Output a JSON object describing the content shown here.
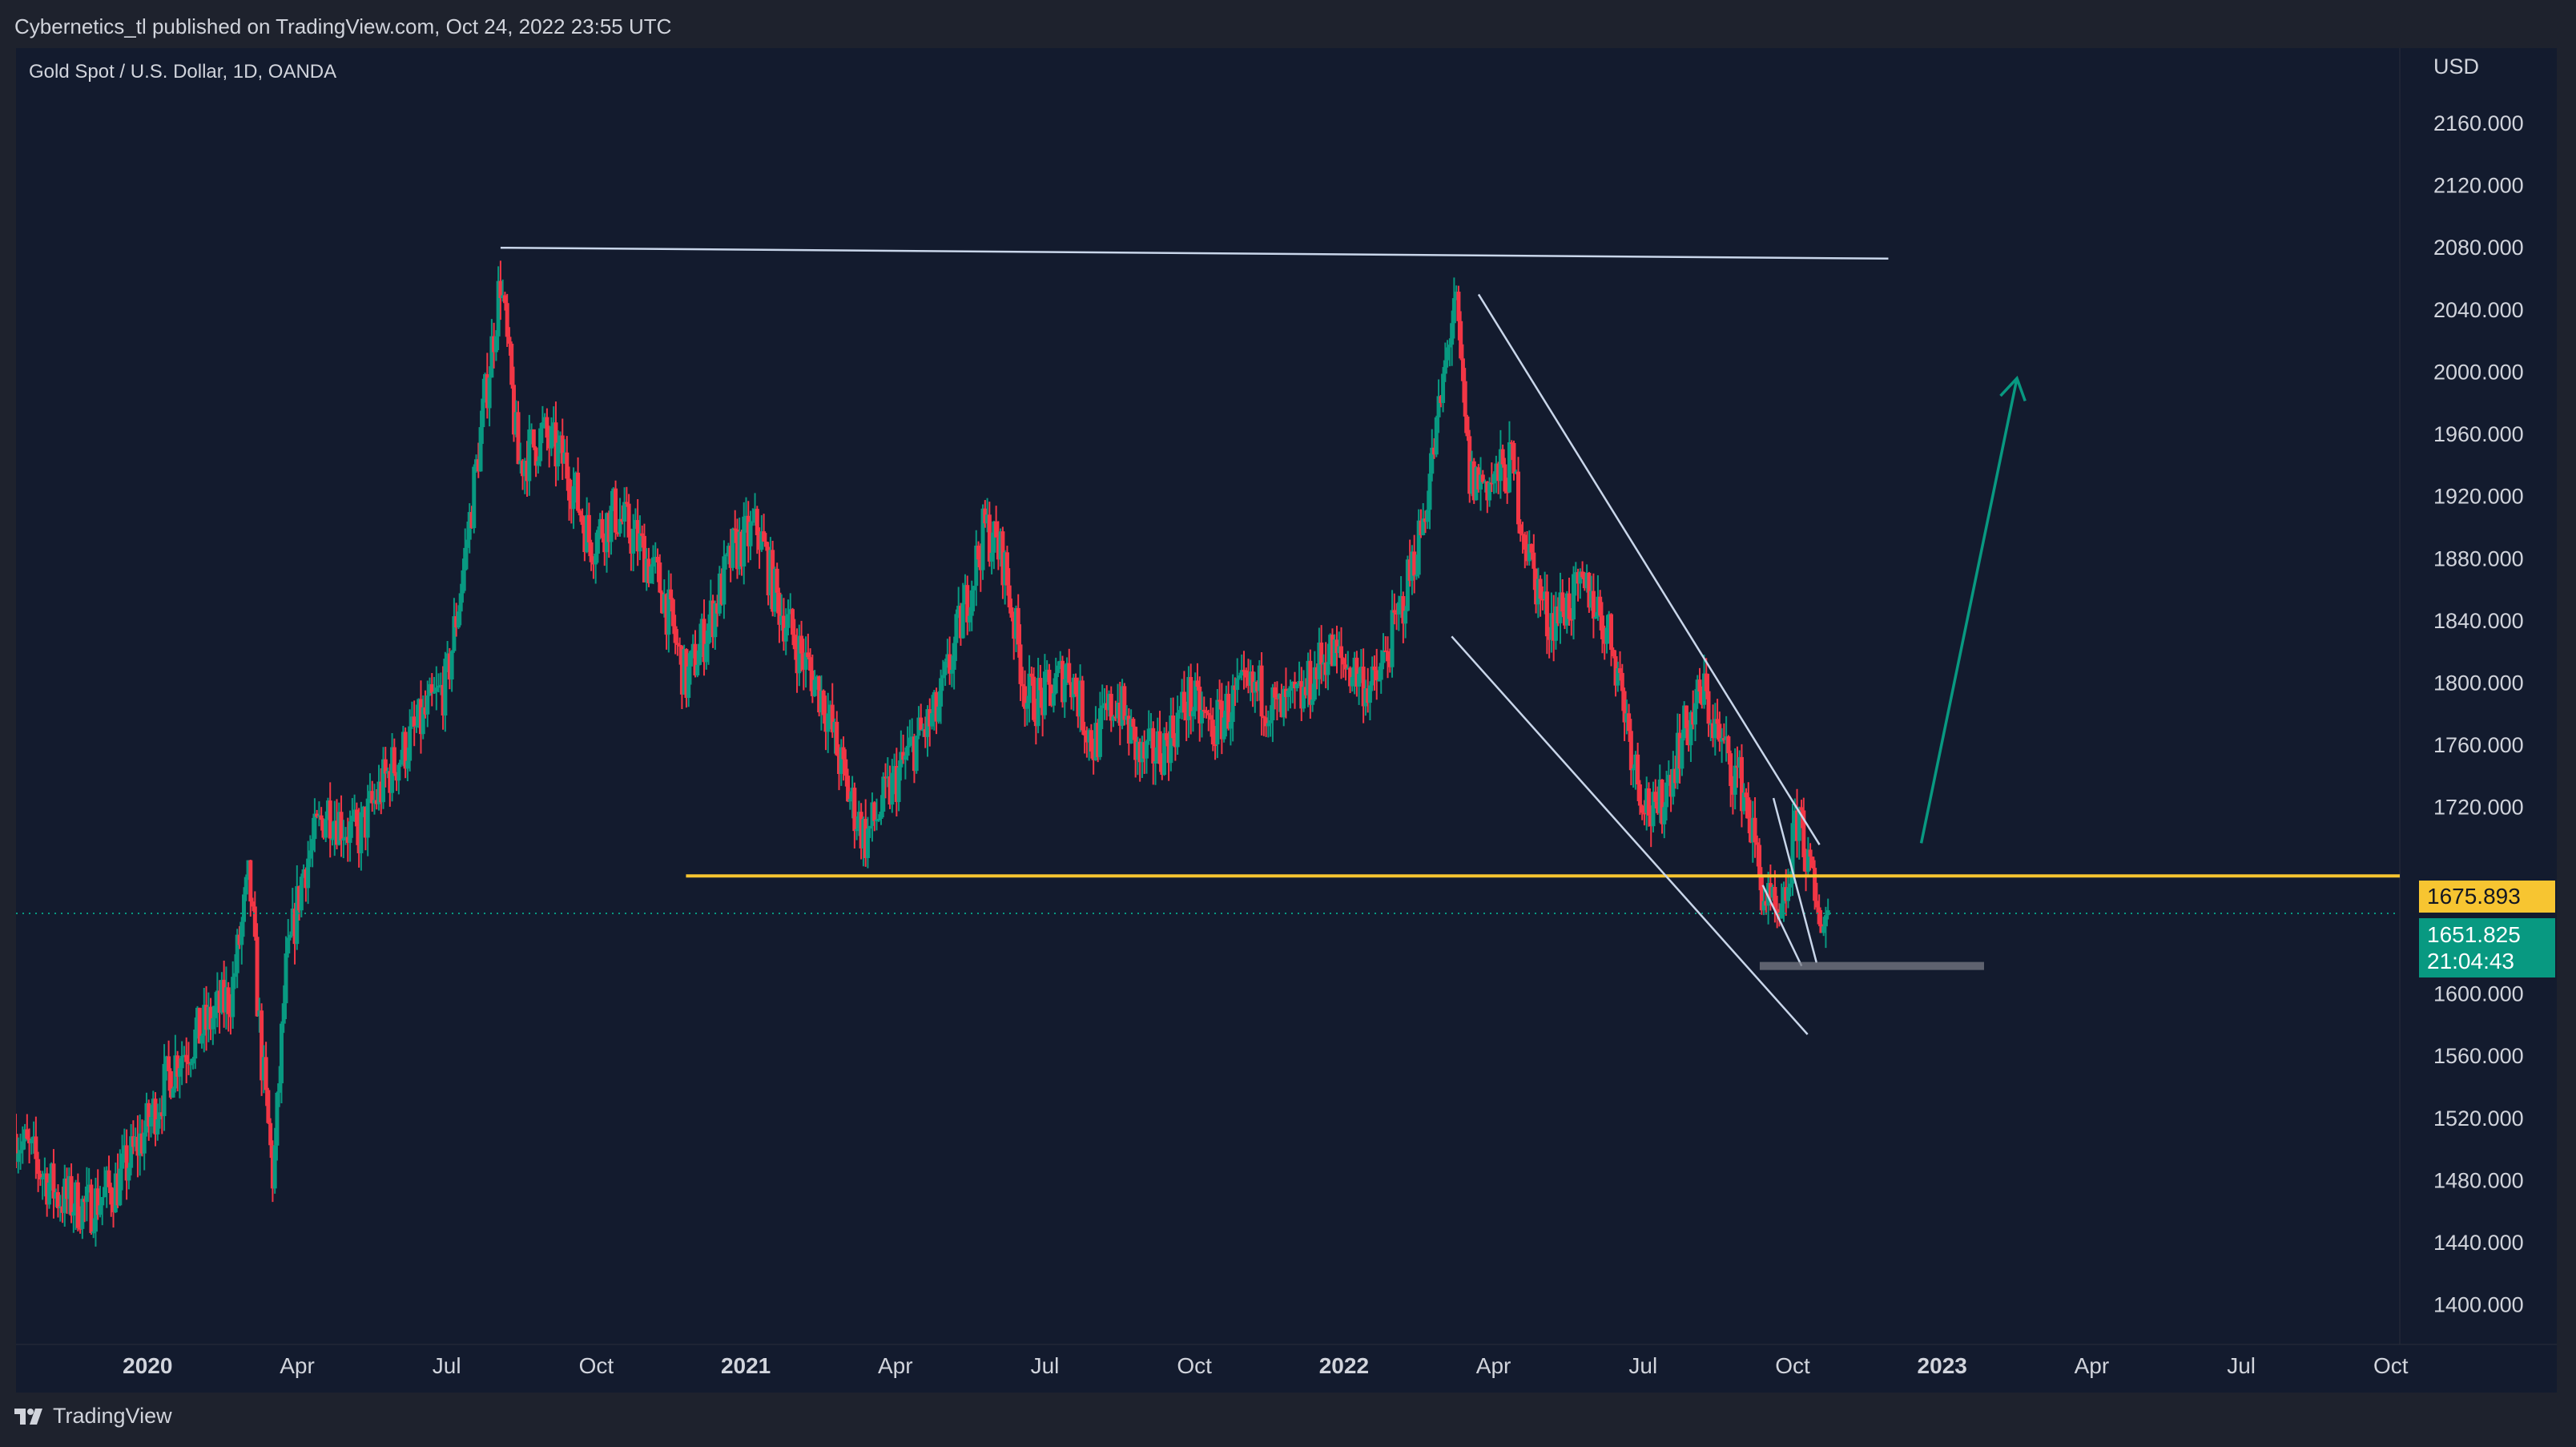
{
  "header": {
    "publisher_text": "Cybernetics_tl published on TradingView.com, Oct 24, 2022 23:55 UTC"
  },
  "symbol": {
    "title": "Gold Spot / U.S. Dollar, 1D, OANDA",
    "currency": "USD"
  },
  "price_tags": {
    "level": "1675.893",
    "last_price": "1651.825",
    "countdown": "21:04:43"
  },
  "footer": {
    "brand": "TradingView"
  },
  "colors": {
    "background": "#131b2e",
    "up": "#089981",
    "down": "#f23645",
    "level_line": "#f7c531",
    "trend_line": "#c9d6ea",
    "arrow": "#089981",
    "zone": "#787b86"
  },
  "chart_data": {
    "type": "candlestick",
    "title": "Gold Spot / U.S. Dollar, 1D, OANDA",
    "ylabel": "USD",
    "ylim": [
      1400,
      2180
    ],
    "y_ticks": [
      2160,
      2120,
      2080,
      2040,
      2000,
      1960,
      1920,
      1880,
      1840,
      1800,
      1760,
      1720,
      1600,
      1560,
      1520,
      1480,
      1440,
      1400
    ],
    "y_tick_labels": [
      "2160.000",
      "2120.000",
      "2080.000",
      "2040.000",
      "2000.000",
      "1960.000",
      "1920.000",
      "1880.000",
      "1840.000",
      "1800.000",
      "1760.000",
      "1720.000",
      "1600.000",
      "1560.000",
      "1520.000",
      "1480.000",
      "1440.000",
      "1400.000"
    ],
    "x_ticks": [
      {
        "label": "2020",
        "t": 2020.0,
        "bold": true
      },
      {
        "label": "Apr",
        "t": 2020.25,
        "bold": false
      },
      {
        "label": "Jul",
        "t": 2020.5,
        "bold": false
      },
      {
        "label": "Oct",
        "t": 2020.75,
        "bold": false
      },
      {
        "label": "2021",
        "t": 2021.0,
        "bold": true
      },
      {
        "label": "Apr",
        "t": 2021.25,
        "bold": false
      },
      {
        "label": "Jul",
        "t": 2021.5,
        "bold": false
      },
      {
        "label": "Oct",
        "t": 2021.75,
        "bold": false
      },
      {
        "label": "2022",
        "t": 2022.0,
        "bold": true
      },
      {
        "label": "Apr",
        "t": 2022.25,
        "bold": false
      },
      {
        "label": "Jul",
        "t": 2022.5,
        "bold": false
      },
      {
        "label": "Oct",
        "t": 2022.75,
        "bold": false
      },
      {
        "label": "2023",
        "t": 2023.0,
        "bold": true
      },
      {
        "label": "Apr",
        "t": 2023.25,
        "bold": false
      },
      {
        "label": "Jul",
        "t": 2023.5,
        "bold": false
      },
      {
        "label": "Oct",
        "t": 2023.75,
        "bold": false
      }
    ],
    "xlim": [
      2019.78,
      2023.765
    ],
    "series": [
      {
        "name": "XAUUSD close (approx.)",
        "points": [
          [
            2019.78,
            1510
          ],
          [
            2019.85,
            1470
          ],
          [
            2019.9,
            1462
          ],
          [
            2019.95,
            1478
          ],
          [
            2020.0,
            1515
          ],
          [
            2020.05,
            1560
          ],
          [
            2020.1,
            1580
          ],
          [
            2020.14,
            1600
          ],
          [
            2020.17,
            1675
          ],
          [
            2020.19,
            1560
          ],
          [
            2020.21,
            1480
          ],
          [
            2020.23,
            1610
          ],
          [
            2020.26,
            1680
          ],
          [
            2020.3,
            1720
          ],
          [
            2020.35,
            1700
          ],
          [
            2020.4,
            1740
          ],
          [
            2020.45,
            1770
          ],
          [
            2020.5,
            1800
          ],
          [
            2020.53,
            1880
          ],
          [
            2020.56,
            1970
          ],
          [
            2020.59,
            2060
          ],
          [
            2020.62,
            1940
          ],
          [
            2020.66,
            1960
          ],
          [
            2020.7,
            1940
          ],
          [
            2020.74,
            1890
          ],
          [
            2020.78,
            1910
          ],
          [
            2020.82,
            1890
          ],
          [
            2020.86,
            1860
          ],
          [
            2020.9,
            1800
          ],
          [
            2020.94,
            1840
          ],
          [
            2020.98,
            1885
          ],
          [
            2021.02,
            1900
          ],
          [
            2021.05,
            1855
          ],
          [
            2021.09,
            1820
          ],
          [
            2021.13,
            1790
          ],
          [
            2021.17,
            1730
          ],
          [
            2021.2,
            1700
          ],
          [
            2021.24,
            1730
          ],
          [
            2021.28,
            1760
          ],
          [
            2021.32,
            1780
          ],
          [
            2021.36,
            1840
          ],
          [
            2021.4,
            1900
          ],
          [
            2021.43,
            1880
          ],
          [
            2021.47,
            1790
          ],
          [
            2021.5,
            1790
          ],
          [
            2021.54,
            1810
          ],
          [
            2021.58,
            1760
          ],
          [
            2021.62,
            1790
          ],
          [
            2021.66,
            1750
          ],
          [
            2021.7,
            1760
          ],
          [
            2021.74,
            1790
          ],
          [
            2021.78,
            1770
          ],
          [
            2021.82,
            1790
          ],
          [
            2021.86,
            1795
          ],
          [
            2021.89,
            1780
          ],
          [
            2021.93,
            1790
          ],
          [
            2021.97,
            1820
          ],
          [
            2022.01,
            1810
          ],
          [
            2022.05,
            1795
          ],
          [
            2022.09,
            1840
          ],
          [
            2022.13,
            1900
          ],
          [
            2022.16,
            1975
          ],
          [
            2022.185,
            2050
          ],
          [
            2022.21,
            1930
          ],
          [
            2022.25,
            1930
          ],
          [
            2022.28,
            1940
          ],
          [
            2022.31,
            1880
          ],
          [
            2022.34,
            1840
          ],
          [
            2022.37,
            1850
          ],
          [
            2022.41,
            1860
          ],
          [
            2022.45,
            1825
          ],
          [
            2022.49,
            1740
          ],
          [
            2022.52,
            1710
          ],
          [
            2022.56,
            1760
          ],
          [
            2022.6,
            1795
          ],
          [
            2022.63,
            1760
          ],
          [
            2022.67,
            1730
          ],
          [
            2022.7,
            1665
          ],
          [
            2022.73,
            1640
          ],
          [
            2022.76,
            1720
          ],
          [
            2022.79,
            1650
          ],
          [
            2022.81,
            1651.825
          ]
        ]
      }
    ],
    "annotations": {
      "horizontal_level": 1675.893,
      "last_price": 1651.825,
      "resistance_line": [
        [
          2020.59,
          2080
        ],
        [
          2022.91,
          2073
        ]
      ],
      "channel_upper": [
        [
          2022.225,
          2050
        ],
        [
          2022.795,
          1696
        ]
      ],
      "channel_lower": [
        [
          2022.18,
          1830
        ],
        [
          2022.775,
          1574
        ]
      ],
      "wedge_upper": [
        [
          2022.7,
          1670
        ],
        [
          2022.765,
          1618
        ]
      ],
      "wedge_lower": [
        [
          2022.718,
          1726
        ],
        [
          2022.79,
          1620
        ]
      ],
      "support_zone": {
        "t_start": 2022.695,
        "t_end": 2023.07,
        "price": 1618
      },
      "projection_arrow": [
        [
          2022.965,
          1697
        ],
        [
          2023.125,
          1996
        ]
      ]
    }
  }
}
